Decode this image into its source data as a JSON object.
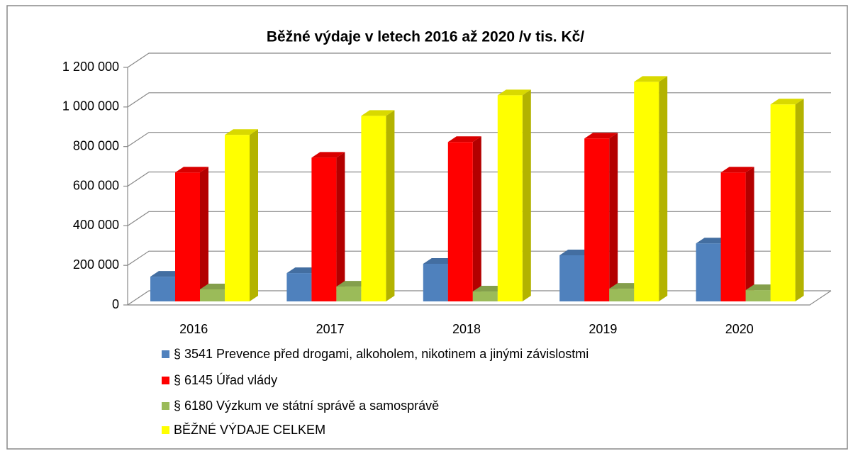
{
  "chart_data": {
    "type": "bar3d",
    "title": "Běžné výdaje v letech 2016 až 2020 /v tis. Kč/",
    "categories": [
      "2016",
      "2017",
      "2018",
      "2019",
      "2020"
    ],
    "series": [
      {
        "name": "§ 3541 Prevence před drogami, alkoholem, nikotinem a jinými závislostmi",
        "color": "#4f81bd",
        "values": [
          125000,
          143000,
          190000,
          233000,
          293000
        ]
      },
      {
        "name": "§ 6145 Úřad vlády",
        "color": "#ff0000",
        "values": [
          651000,
          726000,
          805000,
          823000,
          651000
        ]
      },
      {
        "name": "§ 6180 Výzkum ve státní správě a samosprávě",
        "color": "#9bbb59",
        "values": [
          61000,
          75000,
          50000,
          64000,
          57000
        ]
      },
      {
        "name": "BĚŽNÉ VÝDAJE CELKEM",
        "color": "#ffff00",
        "values": [
          841000,
          937000,
          1041000,
          1109000,
          995000
        ]
      }
    ],
    "ylim": [
      0,
      1200000
    ],
    "yticks": [
      0,
      {
        "value": 200000,
        "label": "200 000"
      },
      {
        "value": 400000,
        "label": "400 000"
      },
      {
        "value": 600000,
        "label": "600 000"
      },
      {
        "value": 800000,
        "label": "800 000"
      },
      {
        "value": 1000000,
        "label": "1 000 000"
      },
      {
        "value": 1200000,
        "label": "1 200 000"
      }
    ],
    "grid": true,
    "legend": "bottom"
  }
}
